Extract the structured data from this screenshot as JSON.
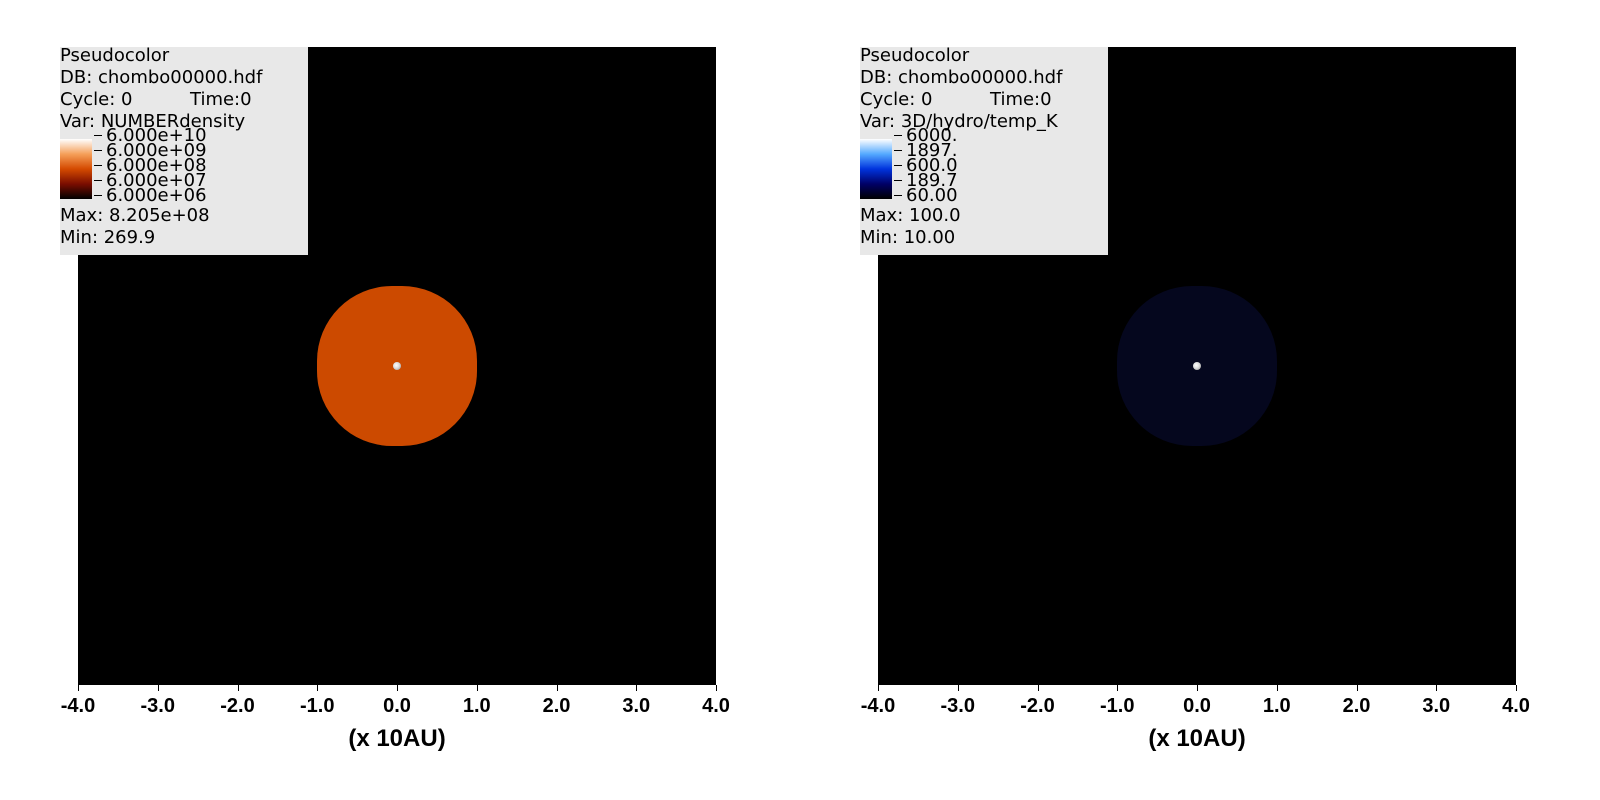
{
  "panels": [
    {
      "legend": {
        "plot_type": "Pseudocolor",
        "db": "DB: chombo00000.hdf",
        "cycle": "Cycle: 0",
        "time": "Time:0",
        "var": "Var: NUMBERdensity",
        "colorbar_labels": [
          "6.000e+10",
          "6.000e+09",
          "6.000e+08",
          "6.000e+07",
          "6.000e+06"
        ],
        "max": "Max:  8.205e+08",
        "min": "Min:  269.9"
      },
      "colors": {
        "colorbar": [
          "#000000",
          "#7a0d00",
          "#d44a00",
          "#f5a05a",
          "#ffffff"
        ],
        "disk": "#cc4a00"
      },
      "disk_radius": 1.0
    },
    {
      "legend": {
        "plot_type": "Pseudocolor",
        "db": "DB: chombo00000.hdf",
        "cycle": "Cycle: 0",
        "time": "Time:0",
        "var": "Var: 3D/hydro/temp_K",
        "colorbar_labels": [
          "6000.",
          "1897.",
          "600.0",
          "189.7",
          "60.00"
        ],
        "max": "Max:  100.0",
        "min": "Min:  10.00"
      },
      "colors": {
        "colorbar": [
          "#000000",
          "#000066",
          "#0033dd",
          "#55aaff",
          "#ffffff"
        ],
        "disk": "#05071e"
      },
      "disk_radius": 1.0
    }
  ],
  "chart_data": [
    {
      "type": "heatmap",
      "title": "",
      "xlabel": "(x 10AU)",
      "x_ticks": [
        "-4.0",
        "-3.0",
        "-2.0",
        "-1.0",
        "0.0",
        "1.0",
        "2.0",
        "3.0",
        "4.0"
      ],
      "xlim": [
        -4.0,
        4.0
      ],
      "ylim": [
        -4.0,
        4.0
      ],
      "variable": "NUMBERdensity",
      "color_scale": "log",
      "colorbar_range": [
        6000000.0,
        60000000000.0
      ],
      "max": 820500000,
      "min": 269.9,
      "features": [
        {
          "shape": "disk",
          "center": [
            0.0,
            0.0
          ],
          "radius": 1.0
        },
        {
          "shape": "point",
          "center": [
            0.0,
            0.0
          ]
        }
      ]
    },
    {
      "type": "heatmap",
      "title": "",
      "xlabel": "(x 10AU)",
      "x_ticks": [
        "-4.0",
        "-3.0",
        "-2.0",
        "-1.0",
        "0.0",
        "1.0",
        "2.0",
        "3.0",
        "4.0"
      ],
      "xlim": [
        -4.0,
        4.0
      ],
      "ylim": [
        -4.0,
        4.0
      ],
      "variable": "3D/hydro/temp_K",
      "color_scale": "log",
      "colorbar_range": [
        60,
        6000
      ],
      "max": 100.0,
      "min": 10.0,
      "features": [
        {
          "shape": "disk",
          "center": [
            0.0,
            0.0
          ],
          "radius": 1.0
        },
        {
          "shape": "point",
          "center": [
            0.0,
            0.0
          ]
        }
      ]
    }
  ]
}
